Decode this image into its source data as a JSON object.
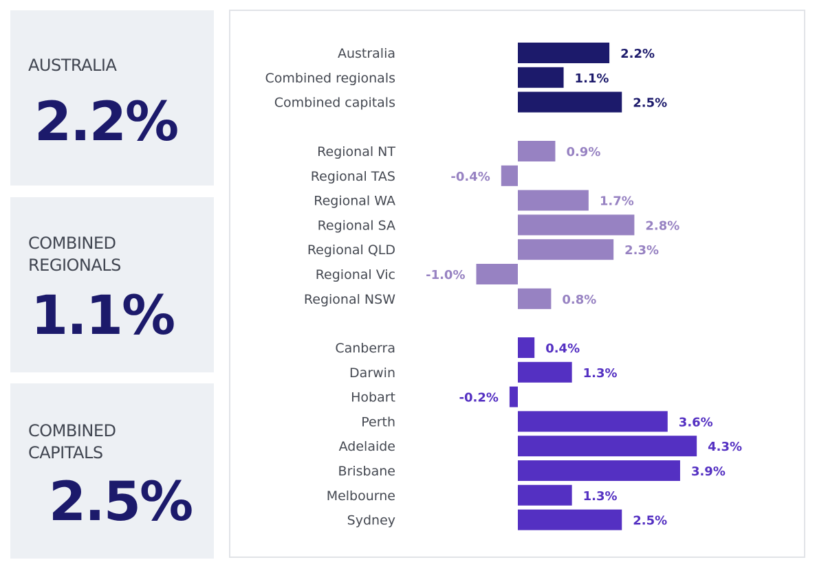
{
  "cards": [
    {
      "label_lines": [
        "AUSTRALIA"
      ],
      "value": "2.2%"
    },
    {
      "label_lines": [
        "COMBINED",
        "REGIONALS"
      ],
      "value": "1.1%"
    },
    {
      "label_lines": [
        "COMBINED",
        "CAPITALS"
      ],
      "value": "2.5%"
    }
  ],
  "colors": {
    "card_bg": "#edf0f4",
    "card_value": "#1c1a6b",
    "aggregate": "#1c1a6b",
    "regional": "#9782c2",
    "capital": "#5430c2"
  },
  "chart_data": {
    "type": "bar",
    "orientation": "horizontal",
    "title": "",
    "xlabel": "",
    "ylabel": "",
    "grid": false,
    "legend": "none",
    "groups": [
      {
        "color": "#1c1a6b",
        "categories": [
          "Australia",
          "Combined regionals",
          "Combined capitals"
        ],
        "values": [
          2.2,
          1.1,
          2.5
        ],
        "labels": [
          "2.2%",
          "1.1%",
          "2.5%"
        ]
      },
      {
        "color": "#9782c2",
        "categories": [
          "Regional NT",
          "Regional TAS",
          "Regional WA",
          "Regional SA",
          "Regional QLD",
          "Regional Vic",
          "Regional NSW"
        ],
        "values": [
          0.9,
          -0.4,
          1.7,
          2.8,
          2.3,
          -1.0,
          0.8
        ],
        "labels": [
          "0.9%",
          "-0.4%",
          "1.7%",
          "2.8%",
          "2.3%",
          "-1.0%",
          "0.8%"
        ]
      },
      {
        "color": "#5430c2",
        "categories": [
          "Canberra",
          "Darwin",
          "Hobart",
          "Perth",
          "Adelaide",
          "Brisbane",
          "Melbourne",
          "Sydney"
        ],
        "values": [
          0.4,
          1.3,
          -0.2,
          3.6,
          4.3,
          3.9,
          1.3,
          2.5
        ],
        "labels": [
          "0.4%",
          "1.3%",
          "-0.2%",
          "3.6%",
          "4.3%",
          "3.9%",
          "1.3%",
          "2.5%"
        ]
      }
    ]
  }
}
